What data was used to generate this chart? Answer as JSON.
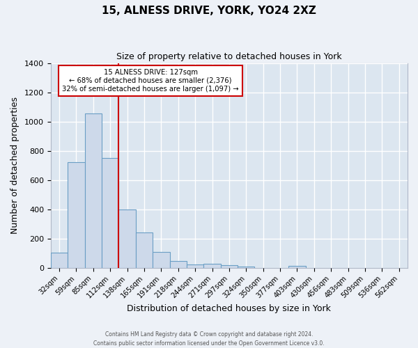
{
  "title": "15, ALNESS DRIVE, YORK, YO24 2XZ",
  "subtitle": "Size of property relative to detached houses in York",
  "xlabel": "Distribution of detached houses by size in York",
  "ylabel": "Number of detached properties",
  "bar_color": "#cdd9ea",
  "bar_edge_color": "#6a9ec5",
  "background_color": "#dce6f0",
  "fig_background_color": "#edf1f7",
  "grid_color": "#ffffff",
  "categories": [
    "32sqm",
    "59sqm",
    "85sqm",
    "112sqm",
    "138sqm",
    "165sqm",
    "191sqm",
    "218sqm",
    "244sqm",
    "271sqm",
    "297sqm",
    "324sqm",
    "350sqm",
    "377sqm",
    "403sqm",
    "430sqm",
    "456sqm",
    "483sqm",
    "509sqm",
    "536sqm",
    "562sqm"
  ],
  "values": [
    105,
    720,
    1055,
    750,
    400,
    240,
    110,
    48,
    22,
    27,
    20,
    10,
    0,
    0,
    12,
    0,
    0,
    0,
    0,
    0,
    0
  ],
  "ylim": [
    0,
    1400
  ],
  "yticks": [
    0,
    200,
    400,
    600,
    800,
    1000,
    1200,
    1400
  ],
  "vline_color": "#cc0000",
  "vline_x_index": 3.5,
  "annotation_title": "15 ALNESS DRIVE: 127sqm",
  "annotation_line1": "← 68% of detached houses are smaller (2,376)",
  "annotation_line2": "32% of semi-detached houses are larger (1,097) →",
  "annotation_box_color": "#ffffff",
  "annotation_box_edge": "#cc0000",
  "footer_line1": "Contains HM Land Registry data © Crown copyright and database right 2024.",
  "footer_line2": "Contains public sector information licensed under the Open Government Licence v3.0."
}
